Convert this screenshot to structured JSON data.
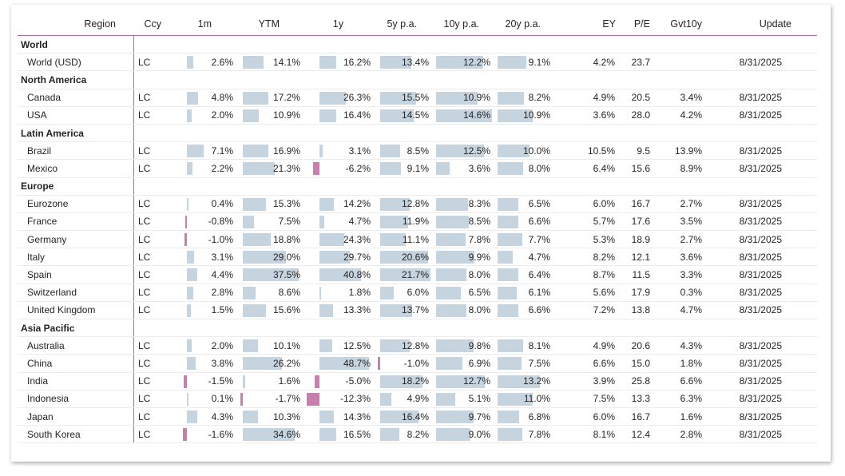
{
  "colors": {
    "positive_bar": "#c6d4df",
    "negative_bar": "#c77fab",
    "divider": "#b7699c"
  },
  "headers": [
    "Region",
    "Ccy",
    "1m",
    "YTM",
    "1y",
    "5y p.a.",
    "10y p.a.",
    "20y p.a.",
    "EY",
    "P/E",
    "Gvt10y",
    "Update"
  ],
  "groups": [
    {
      "name": "World",
      "rows": [
        {
          "region": "World (USD)",
          "ccy": "LC",
          "m1": "2.6%",
          "ytm": "14.1%",
          "y1": "16.2%",
          "y5": "13.4%",
          "y10": "12.2%",
          "y20": "9.1%",
          "ey": "4.2%",
          "pe": "23.7",
          "gvt": "",
          "update": "8/31/2025"
        }
      ]
    },
    {
      "name": "North America",
      "rows": [
        {
          "region": "Canada",
          "ccy": "LC",
          "m1": "4.8%",
          "ytm": "17.2%",
          "y1": "26.3%",
          "y5": "15.5%",
          "y10": "10.9%",
          "y20": "8.2%",
          "ey": "4.9%",
          "pe": "20.5",
          "gvt": "3.4%",
          "update": "8/31/2025"
        },
        {
          "region": "USA",
          "ccy": "LC",
          "m1": "2.0%",
          "ytm": "10.9%",
          "y1": "16.4%",
          "y5": "14.5%",
          "y10": "14.6%",
          "y20": "10.9%",
          "ey": "3.6%",
          "pe": "28.0",
          "gvt": "4.2%",
          "update": "8/31/2025"
        }
      ]
    },
    {
      "name": "Latin America",
      "rows": [
        {
          "region": "Brazil",
          "ccy": "LC",
          "m1": "7.1%",
          "ytm": "16.9%",
          "y1": "3.1%",
          "y5": "8.5%",
          "y10": "12.5%",
          "y20": "10.0%",
          "ey": "10.5%",
          "pe": "9.5",
          "gvt": "13.9%",
          "update": "8/31/2025"
        },
        {
          "region": "Mexico",
          "ccy": "LC",
          "m1": "2.2%",
          "ytm": "21.3%",
          "y1": "-6.2%",
          "y5": "9.1%",
          "y10": "3.6%",
          "y20": "8.0%",
          "ey": "6.4%",
          "pe": "15.6",
          "gvt": "8.9%",
          "update": "8/31/2025"
        }
      ]
    },
    {
      "name": "Europe",
      "rows": [
        {
          "region": "Eurozone",
          "ccy": "LC",
          "m1": "0.4%",
          "ytm": "15.3%",
          "y1": "14.2%",
          "y5": "12.8%",
          "y10": "8.3%",
          "y20": "6.5%",
          "ey": "6.0%",
          "pe": "16.7",
          "gvt": "2.7%",
          "update": "8/31/2025"
        },
        {
          "region": "France",
          "ccy": "LC",
          "m1": "-0.8%",
          "ytm": "7.5%",
          "y1": "4.7%",
          "y5": "11.9%",
          "y10": "8.5%",
          "y20": "6.6%",
          "ey": "5.7%",
          "pe": "17.6",
          "gvt": "3.5%",
          "update": "8/31/2025"
        },
        {
          "region": "Germany",
          "ccy": "LC",
          "m1": "-1.0%",
          "ytm": "18.8%",
          "y1": "24.3%",
          "y5": "11.1%",
          "y10": "7.8%",
          "y20": "7.7%",
          "ey": "5.3%",
          "pe": "18.9",
          "gvt": "2.7%",
          "update": "8/31/2025"
        },
        {
          "region": "Italy",
          "ccy": "LC",
          "m1": "3.1%",
          "ytm": "29.0%",
          "y1": "29.7%",
          "y5": "20.6%",
          "y10": "9.9%",
          "y20": "4.7%",
          "ey": "8.2%",
          "pe": "12.1",
          "gvt": "3.6%",
          "update": "8/31/2025"
        },
        {
          "region": "Spain",
          "ccy": "LC",
          "m1": "4.4%",
          "ytm": "37.5%",
          "y1": "40.8%",
          "y5": "21.7%",
          "y10": "8.0%",
          "y20": "6.4%",
          "ey": "8.7%",
          "pe": "11.5",
          "gvt": "3.3%",
          "update": "8/31/2025"
        },
        {
          "region": "Switzerland",
          "ccy": "LC",
          "m1": "2.8%",
          "ytm": "8.6%",
          "y1": "1.8%",
          "y5": "6.0%",
          "y10": "6.5%",
          "y20": "6.1%",
          "ey": "5.6%",
          "pe": "17.9",
          "gvt": "0.3%",
          "update": "8/31/2025"
        },
        {
          "region": "United Kingdom",
          "ccy": "LC",
          "m1": "1.5%",
          "ytm": "15.6%",
          "y1": "13.3%",
          "y5": "13.7%",
          "y10": "8.0%",
          "y20": "6.6%",
          "ey": "7.2%",
          "pe": "13.8",
          "gvt": "4.7%",
          "update": "8/31/2025"
        }
      ]
    },
    {
      "name": "Asia Pacific",
      "rows": [
        {
          "region": "Australia",
          "ccy": "LC",
          "m1": "2.0%",
          "ytm": "10.1%",
          "y1": "12.5%",
          "y5": "12.8%",
          "y10": "9.8%",
          "y20": "8.1%",
          "ey": "4.9%",
          "pe": "20.6",
          "gvt": "4.3%",
          "update": "8/31/2025"
        },
        {
          "region": "China",
          "ccy": "LC",
          "m1": "3.8%",
          "ytm": "26.2%",
          "y1": "48.7%",
          "y5": "-1.0%",
          "y10": "6.9%",
          "y20": "7.5%",
          "ey": "6.6%",
          "pe": "15.0",
          "gvt": "1.8%",
          "update": "8/31/2025"
        },
        {
          "region": "India",
          "ccy": "LC",
          "m1": "-1.5%",
          "ytm": "1.6%",
          "y1": "-5.0%",
          "y5": "18.2%",
          "y10": "12.7%",
          "y20": "13.2%",
          "ey": "3.9%",
          "pe": "25.8",
          "gvt": "6.6%",
          "update": "8/31/2025"
        },
        {
          "region": "Indonesia",
          "ccy": "LC",
          "m1": "0.1%",
          "ytm": "-1.7%",
          "y1": "-12.3%",
          "y5": "4.9%",
          "y10": "5.1%",
          "y20": "11.0%",
          "ey": "7.5%",
          "pe": "13.3",
          "gvt": "6.3%",
          "update": "8/31/2025"
        },
        {
          "region": "Japan",
          "ccy": "LC",
          "m1": "4.3%",
          "ytm": "10.3%",
          "y1": "14.3%",
          "y5": "16.4%",
          "y10": "9.7%",
          "y20": "6.8%",
          "ey": "6.0%",
          "pe": "16.7",
          "gvt": "1.6%",
          "update": "8/31/2025"
        },
        {
          "region": "South Korea",
          "ccy": "LC",
          "m1": "-1.6%",
          "ytm": "34.6%",
          "y1": "16.5%",
          "y5": "8.2%",
          "y10": "9.0%",
          "y20": "7.8%",
          "ey": "8.1%",
          "pe": "12.4",
          "gvt": "2.8%",
          "update": "8/31/2025"
        }
      ]
    }
  ]
}
